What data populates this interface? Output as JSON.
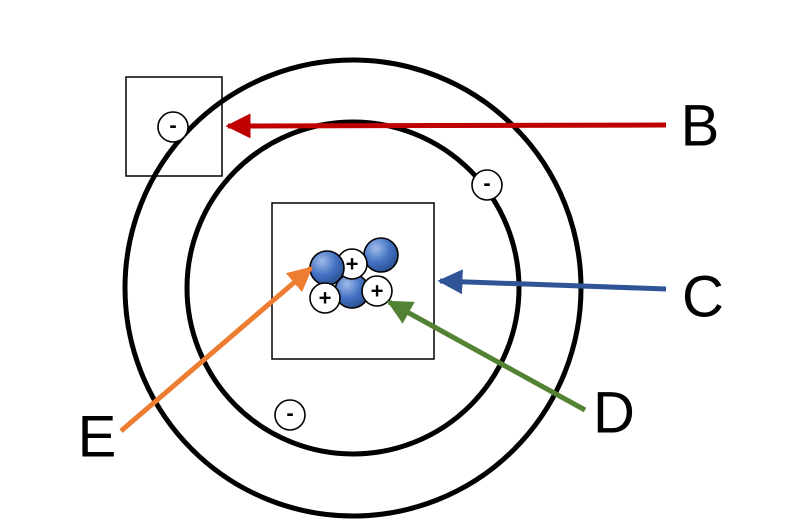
{
  "diagram": {
    "labels": {
      "b": "B",
      "c": "C",
      "d": "D",
      "e": "E"
    },
    "charges": {
      "electron": "-",
      "proton": "+"
    },
    "colors": {
      "arrow_b": "#c00000",
      "arrow_c": "#2f5597",
      "arrow_d": "#548235",
      "arrow_e": "#ed7d31",
      "neutron_fill": "#4472c4",
      "proton_fill": "#ffffff",
      "electron_fill": "#ffffff"
    },
    "particles": {
      "electron_count": 3,
      "proton_count": 3,
      "neutron_count": 3
    }
  }
}
